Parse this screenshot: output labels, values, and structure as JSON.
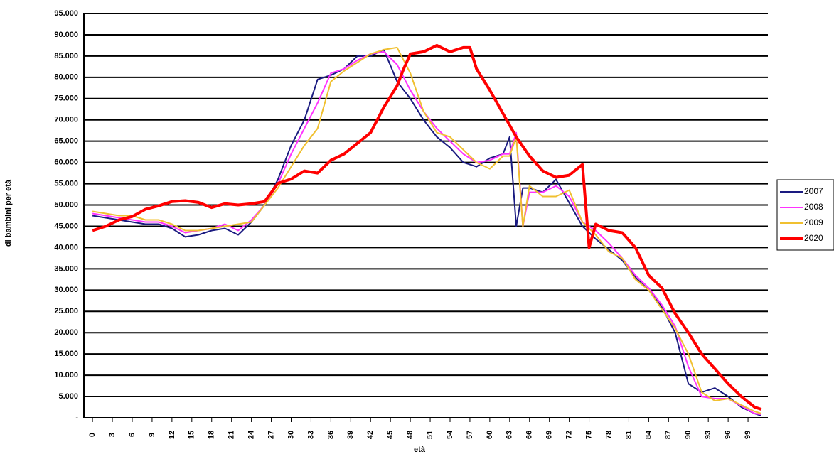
{
  "chart_data": {
    "type": "line",
    "ylabel": "di bambini per età",
    "xlabel": "età",
    "xlim": [
      -1.3,
      102
    ],
    "xticks": [
      0,
      3,
      6,
      9,
      12,
      15,
      18,
      21,
      24,
      27,
      30,
      33,
      36,
      39,
      42,
      45,
      48,
      51,
      54,
      57,
      60,
      63,
      66,
      69,
      72,
      75,
      78,
      81,
      84,
      87,
      90,
      93,
      96,
      99
    ],
    "ylim": [
      0,
      95000
    ],
    "yticks": [
      {
        "value": 0,
        "label": "-"
      },
      {
        "value": 5000,
        "label": "5.000"
      },
      {
        "value": 10000,
        "label": "10.000"
      },
      {
        "value": 15000,
        "label": "15.000"
      },
      {
        "value": 20000,
        "label": "20.000"
      },
      {
        "value": 25000,
        "label": "25.000"
      },
      {
        "value": 30000,
        "label": "30.000"
      },
      {
        "value": 35000,
        "label": "35.000"
      },
      {
        "value": 40000,
        "label": "40.000"
      },
      {
        "value": 45000,
        "label": "45.000"
      },
      {
        "value": 50000,
        "label": "50.000"
      },
      {
        "value": 55000,
        "label": "55.000"
      },
      {
        "value": 60000,
        "label": "60.000"
      },
      {
        "value": 65000,
        "label": "65.000"
      },
      {
        "value": 70000,
        "label": "70.000"
      },
      {
        "value": 75000,
        "label": "75.000"
      },
      {
        "value": 80000,
        "label": "80.000"
      },
      {
        "value": 85000,
        "label": "85.000"
      },
      {
        "value": 90000,
        "label": "90.000"
      },
      {
        "value": 95000,
        "label": "95.000"
      }
    ],
    "grid": true,
    "legend": "right",
    "series": [
      {
        "name": "2007",
        "color": "#1a1a80",
        "width": 2,
        "x": [
          0,
          2,
          4,
          6,
          8,
          10,
          12,
          14,
          16,
          18,
          20,
          22,
          24,
          26,
          28,
          30,
          32,
          34,
          36,
          38,
          40,
          42,
          44,
          46,
          48,
          50,
          52,
          54,
          56,
          58,
          60,
          62,
          63,
          64,
          65,
          66,
          68,
          70,
          72,
          74,
          76,
          78,
          80,
          82,
          84,
          86,
          88,
          90,
          92,
          94,
          96,
          98,
          100,
          101
        ],
        "values": [
          47500,
          47000,
          46500,
          46000,
          45500,
          45500,
          44500,
          42500,
          43000,
          44000,
          44500,
          43000,
          46000,
          50000,
          56000,
          64000,
          70000,
          79500,
          80500,
          82000,
          85000,
          85000,
          86500,
          79000,
          75000,
          70000,
          66000,
          63500,
          60000,
          59000,
          61000,
          62000,
          66000,
          45000,
          54000,
          54000,
          53000,
          56000,
          50500,
          45000,
          42000,
          39500,
          37000,
          33000,
          30000,
          26000,
          20000,
          8000,
          6000,
          7000,
          5000,
          2500,
          1000,
          500
        ]
      },
      {
        "name": "2008",
        "color": "#ff33ff",
        "width": 2,
        "x": [
          0,
          2,
          4,
          6,
          8,
          10,
          12,
          14,
          16,
          18,
          20,
          22,
          24,
          26,
          28,
          30,
          32,
          34,
          36,
          38,
          40,
          42,
          44,
          46,
          48,
          50,
          52,
          54,
          56,
          58,
          60,
          62,
          63,
          64,
          65,
          66,
          68,
          70,
          72,
          74,
          76,
          78,
          80,
          82,
          84,
          86,
          88,
          90,
          92,
          94,
          96,
          98,
          100,
          101
        ],
        "values": [
          48000,
          47500,
          47000,
          46500,
          46000,
          46000,
          45000,
          43500,
          44000,
          44500,
          45500,
          44000,
          46500,
          50000,
          55000,
          62000,
          68000,
          74000,
          81000,
          82000,
          84000,
          85500,
          86000,
          83000,
          77000,
          72000,
          68000,
          65000,
          62000,
          60000,
          60500,
          62000,
          62000,
          67000,
          45000,
          53000,
          53000,
          54500,
          52000,
          46000,
          44000,
          41000,
          37500,
          33500,
          30500,
          26500,
          21500,
          12000,
          5000,
          4500,
          4500,
          2800,
          1000,
          800
        ]
      },
      {
        "name": "2009",
        "color": "#f0c030",
        "width": 2,
        "x": [
          0,
          2,
          4,
          6,
          8,
          10,
          12,
          14,
          16,
          18,
          20,
          22,
          24,
          26,
          28,
          30,
          32,
          34,
          36,
          38,
          40,
          42,
          44,
          46,
          48,
          50,
          52,
          54,
          56,
          58,
          60,
          62,
          63,
          64,
          65,
          66,
          68,
          70,
          72,
          74,
          76,
          78,
          80,
          82,
          84,
          86,
          88,
          90,
          92,
          94,
          96,
          98,
          100,
          101
        ],
        "values": [
          48500,
          48000,
          47500,
          47500,
          46500,
          46500,
          45500,
          44000,
          44000,
          44500,
          45000,
          45500,
          46000,
          50000,
          54000,
          59000,
          64000,
          68000,
          79000,
          81500,
          83500,
          85500,
          86500,
          87000,
          81000,
          72000,
          67000,
          66000,
          63000,
          60000,
          58500,
          61500,
          61500,
          66000,
          45000,
          54500,
          52000,
          52000,
          53500,
          46000,
          43000,
          39000,
          37500,
          32500,
          30000,
          25500,
          21000,
          15000,
          6000,
          4000,
          4500,
          3000,
          1500,
          1000
        ]
      },
      {
        "name": "2020",
        "color": "#ff0000",
        "width": 4,
        "x": [
          0,
          2,
          4,
          6,
          8,
          10,
          12,
          14,
          16,
          18,
          20,
          22,
          24,
          26,
          28,
          30,
          32,
          34,
          36,
          38,
          40,
          42,
          44,
          46,
          47,
          48,
          50,
          52,
          54,
          56,
          57,
          58,
          60,
          62,
          64,
          66,
          68,
          70,
          72,
          74,
          75,
          76,
          78,
          80,
          82,
          84,
          86,
          88,
          90,
          92,
          94,
          96,
          98,
          100,
          101
        ],
        "values": [
          44000,
          45000,
          46500,
          47300,
          49000,
          49800,
          50800,
          51000,
          50600,
          49400,
          50300,
          50000,
          50300,
          50800,
          55100,
          56100,
          58000,
          57500,
          60500,
          62000,
          64500,
          67000,
          73000,
          78000,
          82000,
          85500,
          86000,
          87500,
          86000,
          87000,
          87000,
          82000,
          77000,
          71500,
          66000,
          61500,
          58000,
          56500,
          57000,
          59500,
          40000,
          45500,
          44000,
          43500,
          40000,
          33500,
          30500,
          24500,
          20000,
          15000,
          11500,
          8000,
          5000,
          2500,
          2000
        ]
      }
    ]
  }
}
